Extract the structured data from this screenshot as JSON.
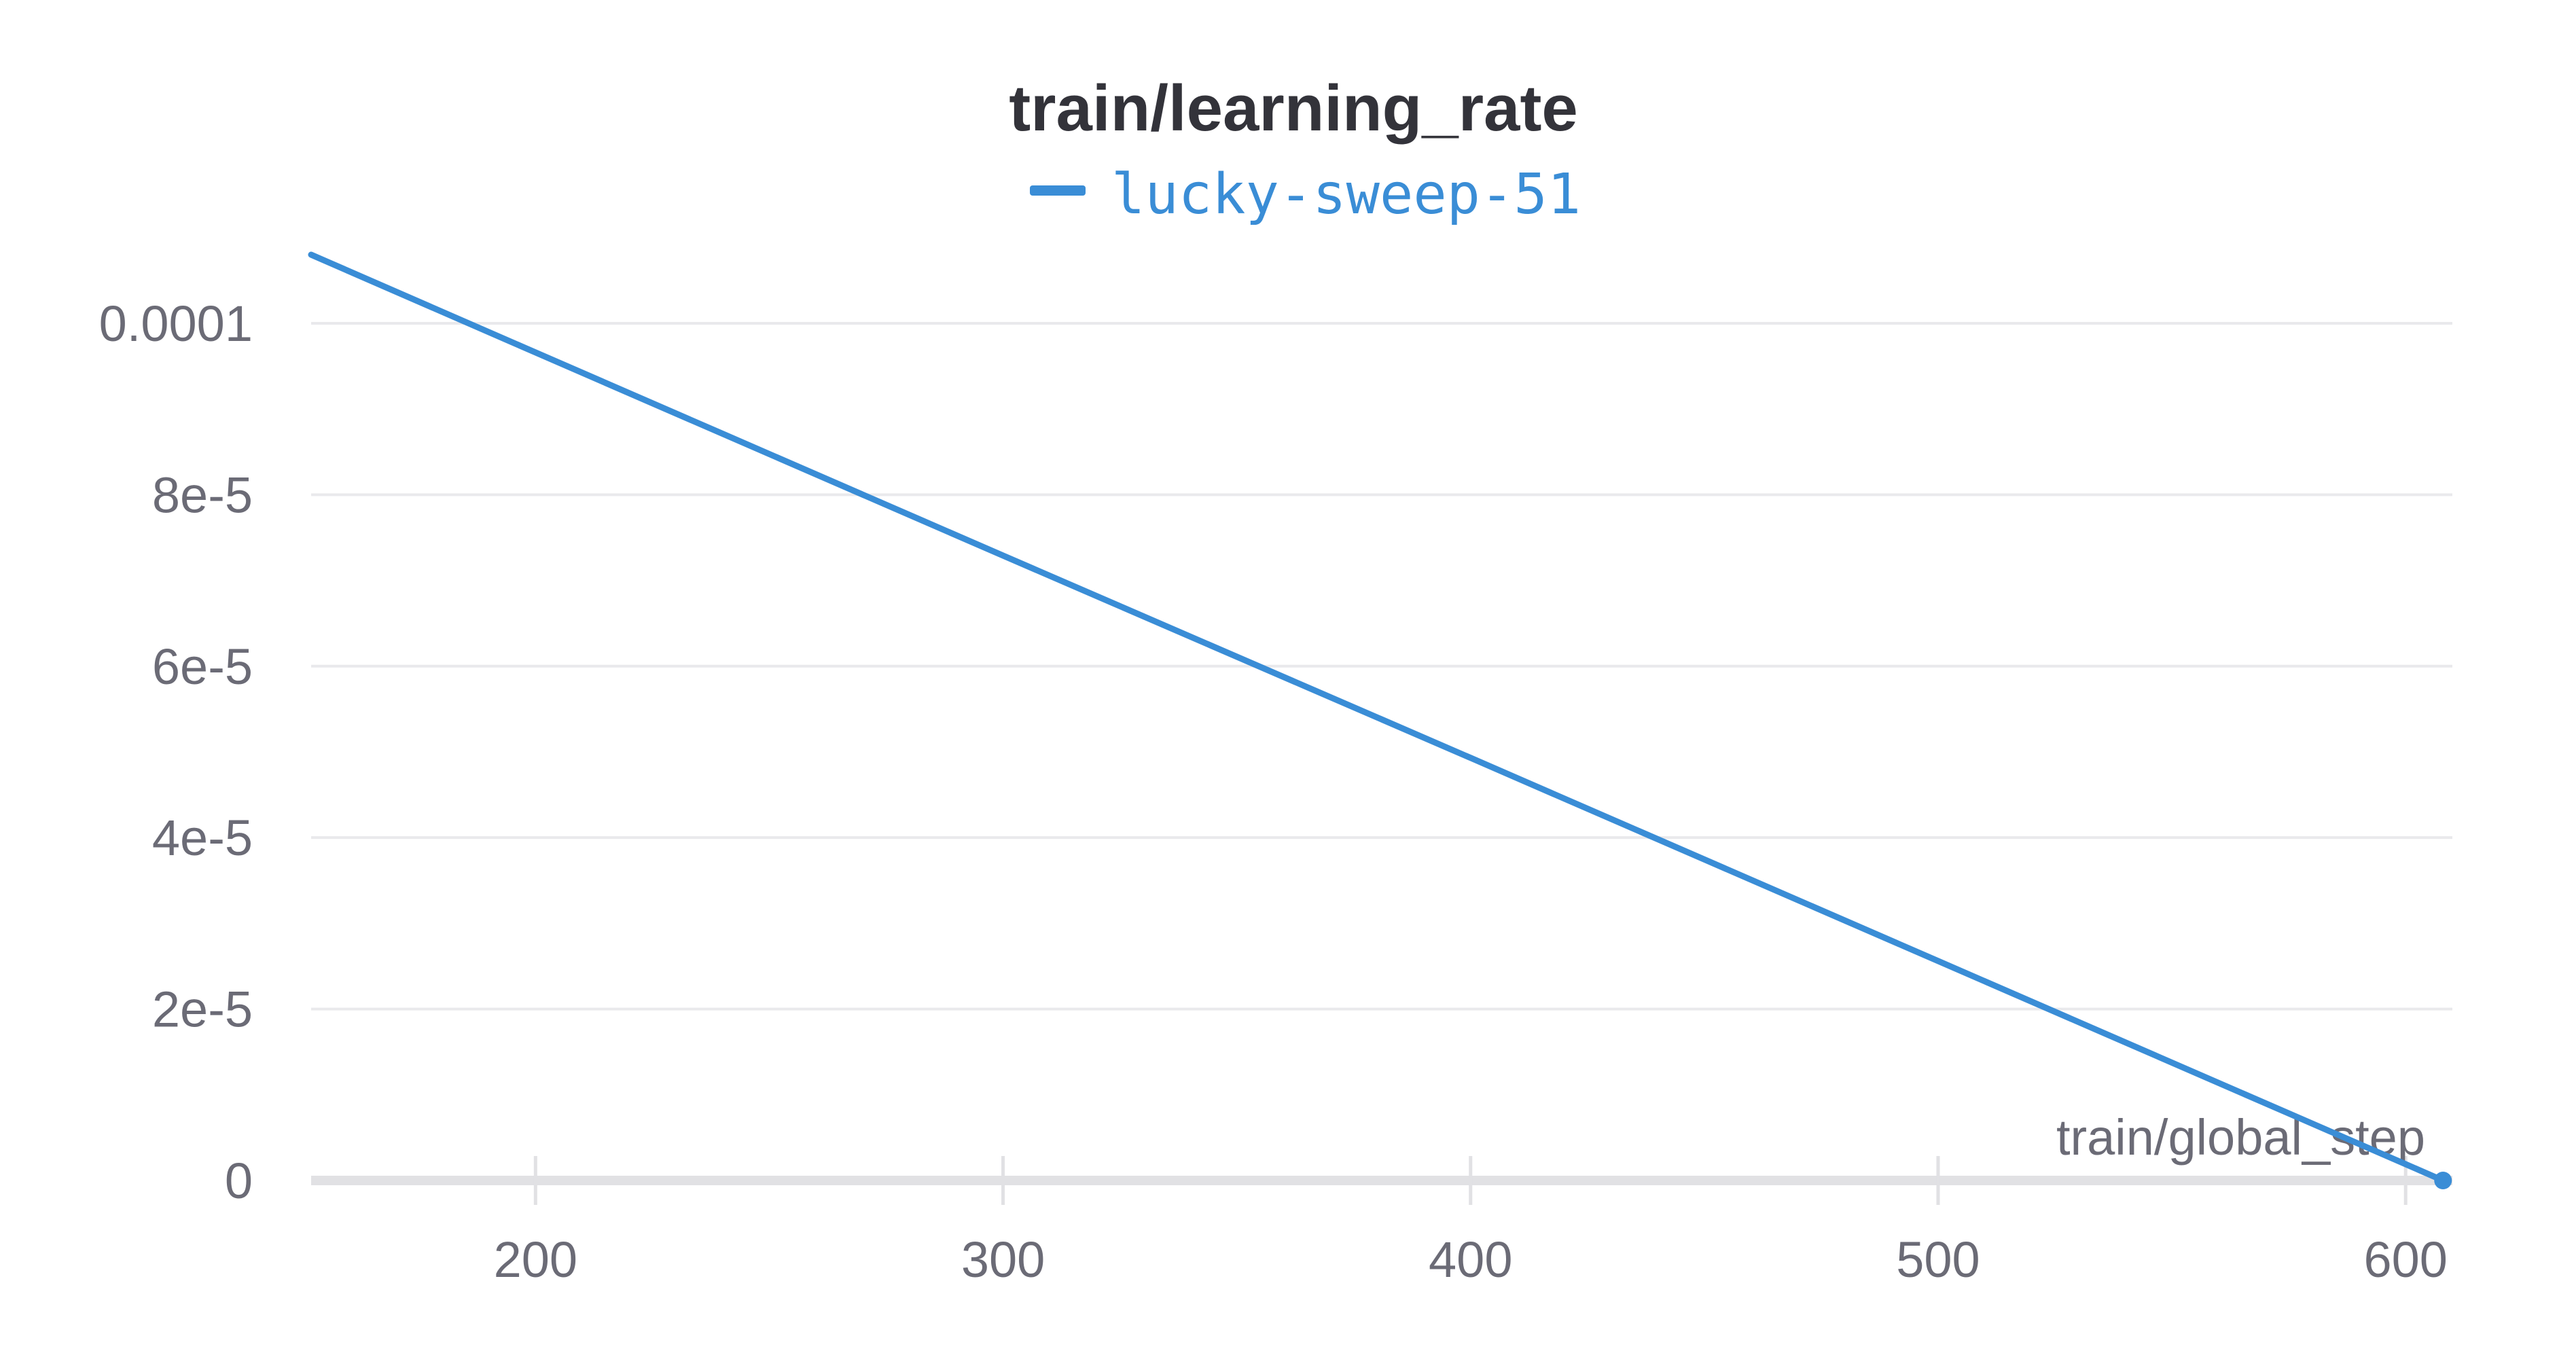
{
  "chart_data": {
    "type": "line",
    "title": "train/learning_rate",
    "xlabel": "train/global_step",
    "ylabel": "",
    "xlim": [
      152,
      610
    ],
    "ylim": [
      0,
      0.000108
    ],
    "x_ticks": [
      200,
      300,
      400,
      500,
      600
    ],
    "x_tick_labels": [
      "200",
      "300",
      "400",
      "500",
      "600"
    ],
    "y_ticks": [
      0,
      2e-05,
      4e-05,
      6e-05,
      8e-05,
      0.0001
    ],
    "y_tick_labels": [
      "0",
      "2e-5",
      "4e-5",
      "6e-5",
      "8e-5",
      "0.0001"
    ],
    "grid": true,
    "legend_position": "top-center",
    "series": [
      {
        "name": "lucky-sweep-51",
        "color": "#3a8dd6",
        "x": [
          152,
          200,
          300,
          400,
          500,
          600,
          608
        ],
        "y": [
          0.000108,
          9.66e-05,
          7.29e-05,
          4.93e-05,
          2.56e-05,
          1.9e-06,
          0.0
        ]
      }
    ]
  }
}
